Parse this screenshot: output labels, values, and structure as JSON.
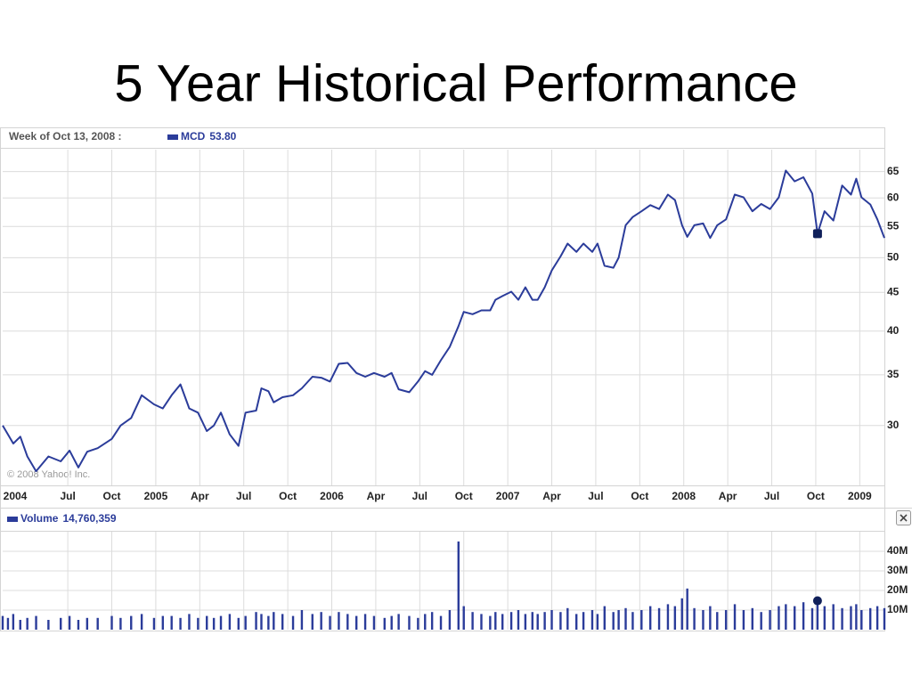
{
  "chart_data": {
    "type": "line",
    "title": "5 Year Historical Performance",
    "header": "Week of Oct 13, 2008 :",
    "credit": "© 2008 Yahoo! Inc.",
    "log_y": true,
    "grid": true,
    "x": [
      2004.13,
      2004.16,
      2004.19,
      2004.23,
      2004.27,
      2004.32,
      2004.39,
      2004.46,
      2004.51,
      2004.56,
      2004.61,
      2004.67,
      2004.75,
      2004.8,
      2004.86,
      2004.92,
      2004.99,
      2005.04,
      2005.09,
      2005.14,
      2005.19,
      2005.24,
      2005.29,
      2005.33,
      2005.37,
      2005.42,
      2005.47,
      2005.51,
      2005.57,
      2005.6,
      2005.64,
      2005.67,
      2005.72,
      2005.78,
      2005.83,
      2005.89,
      2005.94,
      2005.99,
      2006.04,
      2006.09,
      2006.14,
      2006.19,
      2006.24,
      2006.3,
      2006.34,
      2006.38,
      2006.44,
      2006.49,
      2006.53,
      2006.57,
      2006.62,
      2006.67,
      2006.72,
      2006.75,
      2006.8,
      2006.85,
      2006.9,
      2006.93,
      2006.97,
      2007.02,
      2007.06,
      2007.1,
      2007.14,
      2007.17,
      2007.21,
      2007.25,
      2007.3,
      2007.34,
      2007.39,
      2007.43,
      2007.48,
      2007.51,
      2007.55,
      2007.6,
      2007.63,
      2007.67,
      2007.71,
      2007.76,
      2007.81,
      2007.86,
      2007.91,
      2007.95,
      2007.99,
      2008.02,
      2008.06,
      2008.11,
      2008.15,
      2008.19,
      2008.24,
      2008.29,
      2008.34,
      2008.39,
      2008.44,
      2008.49,
      2008.54,
      2008.58,
      2008.63,
      2008.68,
      2008.73,
      2008.76,
      2008.8,
      2008.85,
      2008.9,
      2008.95,
      2008.98,
      2009.01,
      2009.06,
      2009.1,
      2009.14
    ],
    "series": [
      {
        "name": "MCD",
        "color": "#2b3c9a",
        "readout": {
          "value": 53.8,
          "label": "53.80"
        },
        "values": [
          30,
          29.2,
          28.4,
          29,
          27.3,
          26.1,
          27.3,
          26.9,
          27.8,
          26.4,
          27.7,
          28,
          28.8,
          30,
          30.7,
          32.9,
          32,
          31.6,
          32.9,
          34,
          31.6,
          31.2,
          29.5,
          30,
          31.2,
          29.2,
          28.2,
          31.2,
          31.4,
          33.6,
          33.3,
          32.2,
          32.7,
          32.9,
          33.6,
          34.8,
          34.7,
          34.3,
          36.2,
          36.3,
          35.2,
          34.8,
          35.2,
          34.8,
          35.2,
          33.5,
          33.2,
          34.3,
          35.4,
          35,
          36.6,
          38.1,
          40.6,
          42.4,
          42.1,
          42.6,
          42.6,
          44,
          44.5,
          45.1,
          44,
          45.7,
          44,
          44,
          45.7,
          48.1,
          50.2,
          52.2,
          50.9,
          52.2,
          50.9,
          52.2,
          48.8,
          48.5,
          50,
          55.2,
          56.6,
          57.6,
          58.7,
          58,
          60.6,
          59.6,
          55.2,
          53.3,
          55.2,
          55.5,
          53.1,
          55.2,
          56.2,
          60.6,
          60.1,
          57.6,
          58.9,
          58,
          60.1,
          65.2,
          63.1,
          63.9,
          60.8,
          53.8,
          57.6,
          56,
          62.3,
          60.6,
          63.6,
          60.1,
          58.8,
          56.2,
          53.1
        ]
      },
      {
        "name": "Volume",
        "color": "#2b3c9a",
        "axis": "y2",
        "readout": {
          "value": 14760359,
          "label": "14,760,359"
        },
        "values": [
          7,
          6,
          8,
          5,
          6,
          7,
          5,
          6,
          7,
          5,
          6,
          6,
          7,
          6,
          7,
          8,
          6,
          7,
          7,
          6,
          8,
          6,
          7,
          6,
          7,
          8,
          6,
          7,
          9,
          8,
          7,
          9,
          8,
          7,
          10,
          8,
          9,
          7,
          9,
          8,
          7,
          8,
          7,
          6,
          7,
          8,
          7,
          6,
          8,
          9,
          7,
          10,
          45,
          12,
          9,
          8,
          7,
          9,
          8,
          9,
          10,
          8,
          9,
          8,
          9,
          10,
          9,
          11,
          8,
          9,
          10,
          8,
          12,
          9,
          10,
          11,
          9,
          10,
          12,
          11,
          13,
          12,
          16,
          21,
          11,
          10,
          12,
          9,
          10,
          13,
          10,
          11,
          9,
          10,
          12,
          13,
          12,
          14,
          11,
          14.76,
          12,
          13,
          11,
          12,
          13,
          10,
          11,
          12,
          11
        ]
      }
    ],
    "xlim": [
      2004.13,
      2009.14
    ],
    "xticks": [
      {
        "value": 2004,
        "label": "2004"
      },
      {
        "value": 2004.5,
        "label": "Jul"
      },
      {
        "value": 2004.75,
        "label": "Oct"
      },
      2005,
      {
        "value": 2005.25,
        "label": "Apr"
      },
      {
        "value": 2005.5,
        "label": "Jul"
      },
      {
        "value": 2005.75,
        "label": "Oct"
      },
      2006,
      {
        "value": 2006.25,
        "label": "Apr"
      },
      {
        "value": 2006.5,
        "label": "Jul"
      },
      {
        "value": 2006.75,
        "label": "Oct"
      },
      2007,
      {
        "value": 2007.25,
        "label": "Apr"
      },
      {
        "value": 2007.5,
        "label": "Jul"
      },
      {
        "value": 2007.75,
        "label": "Oct"
      },
      2008,
      {
        "value": 2008.25,
        "label": "Apr"
      },
      {
        "value": 2008.5,
        "label": "Jul"
      },
      {
        "value": 2008.75,
        "label": "Oct"
      },
      2009
    ],
    "ylim": [
      25,
      69.5
    ],
    "yticks": [
      30,
      35,
      40,
      45,
      50,
      55,
      60,
      65
    ],
    "y2lim": [
      0,
      50
    ],
    "y2ticks": [
      {
        "value": 10,
        "label": "10M"
      },
      {
        "value": 20,
        "label": "20M"
      },
      {
        "value": 30,
        "label": "30M"
      },
      {
        "value": 40,
        "label": "40M"
      }
    ]
  }
}
